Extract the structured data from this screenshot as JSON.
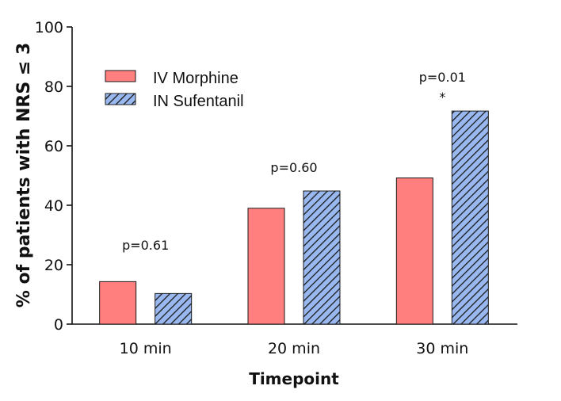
{
  "chart_data": {
    "type": "bar",
    "title": "",
    "xlabel": "Timepoint",
    "ylabel": "% of patients with NRS ≤ 3",
    "categories": [
      "10 min",
      "20 min",
      "30 min"
    ],
    "ylim": [
      0,
      100
    ],
    "yticks": [
      0,
      20,
      40,
      60,
      80,
      100
    ],
    "grid": false,
    "legend_position": "top-left",
    "series": [
      {
        "name": "IV Morphine",
        "values": [
          14.3,
          39.0,
          49.2
        ],
        "color": "#ff7f7f",
        "pattern": "solid"
      },
      {
        "name": "IN Sufentanil",
        "values": [
          10.3,
          44.8,
          71.7
        ],
        "color": "#99b8f0",
        "pattern": "hatched"
      }
    ],
    "annotations": [
      {
        "category": "10 min",
        "text": "p=0.61"
      },
      {
        "category": "20 min",
        "text": "p=0.60"
      },
      {
        "category": "30 min",
        "text": "p=0.01",
        "significance": "*"
      }
    ]
  }
}
